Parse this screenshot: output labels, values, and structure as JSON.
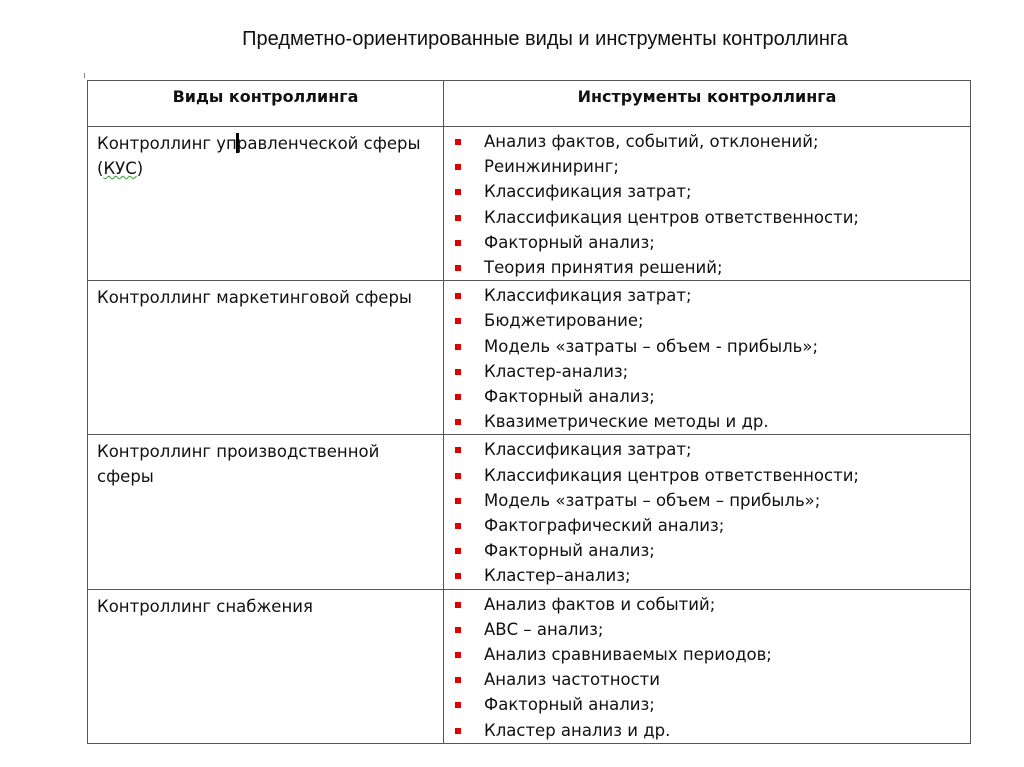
{
  "title": "Предметно-ориентированные виды и инструменты контроллинга",
  "table": {
    "headers": [
      "Виды контроллинга",
      "Инструменты контроллинга"
    ],
    "bullet_color": "#e00000",
    "rows": [
      {
        "kind_before": "Контроллинг управленческой сферы (",
        "kind_abbr": "КУС",
        "kind_after": ")",
        "tools": [
          "Анализ фактов, событий, отклонений;",
          "Реинжиниринг;",
          "Классификация затрат;",
          "Классификация центров ответственности;",
          "Факторный анализ;",
          "Теория принятия решений;"
        ]
      },
      {
        "kind": "Контроллинг маркетинговой сферы",
        "tools": [
          "Классификация затрат;",
          "Бюджетирование;",
          "Модель «затраты – объем - прибыль»;",
          "Кластер-анализ;",
          "Факторный анализ;",
          "Квазиметрические методы и др."
        ]
      },
      {
        "kind": "Контроллинг производственной сферы",
        "tools": [
          "Классификация затрат;",
          "Классификация центров ответственности;",
          "Модель «затраты – объем – прибыль»;",
          "Фактографический анализ;",
          "Факторный анализ;",
          "Кластер–анализ;"
        ]
      },
      {
        "kind": "Контроллинг снабжения",
        "tools": [
          "Анализ фактов и событий;",
          "АВС – анализ;",
          "Анализ сравниваемых периодов;",
          "Анализ частотности",
          "Факторный анализ;",
          "Кластер анализ и др."
        ]
      }
    ]
  }
}
